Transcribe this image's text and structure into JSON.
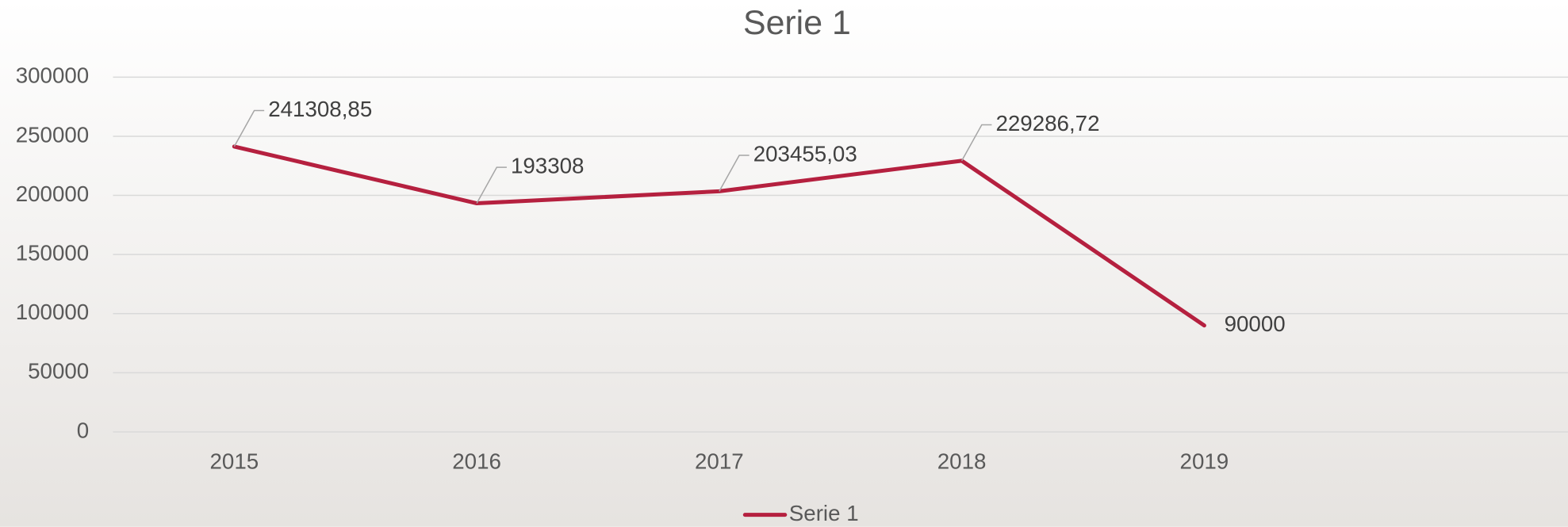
{
  "chart_data": {
    "type": "line",
    "title": "Serie 1",
    "categories": [
      "2015",
      "2016",
      "2017",
      "2018",
      "2019",
      null
    ],
    "series": [
      {
        "name": "Serie 1",
        "color": "#b5203f",
        "values": [
          241308.85,
          193308,
          203455.03,
          229286.72,
          90000,
          null
        ],
        "value_labels": [
          "241308,85",
          "193308",
          "203455,03",
          "229286,72",
          "90000",
          null
        ]
      }
    ],
    "ylim": [
      0,
      300000
    ],
    "yticks": [
      0,
      50000,
      100000,
      150000,
      200000,
      250000,
      300000
    ],
    "grid": true,
    "legend": "bottom"
  }
}
